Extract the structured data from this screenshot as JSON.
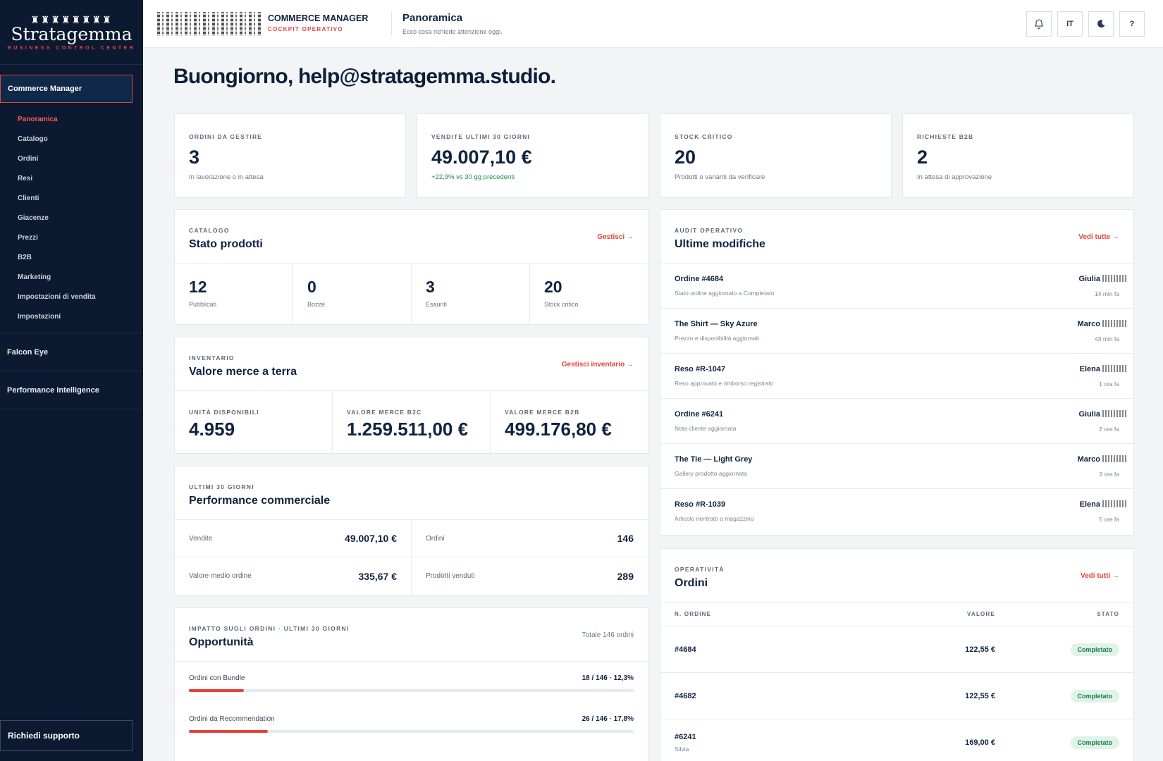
{
  "sidebar": {
    "logo_crown": "♜♜♜♜♜♜♜♜",
    "logo_brand": "Stratagemma",
    "logo_tag": "BUSINESS CONTROL CENTER",
    "section": "Commerce Manager",
    "items": [
      "Panoramica",
      "Catalogo",
      "Ordini",
      "Resi",
      "Clienti",
      "Giacenze",
      "Prezzi",
      "B2B",
      "Marketing",
      "Impostazioni di vendita",
      "Impostazioni"
    ],
    "groups": [
      "Falcon Eye",
      "Performance Intelligence"
    ],
    "support": "Richiedi supporto"
  },
  "topbar": {
    "app_title": "COMMERCE MANAGER",
    "app_sub": "COCKPIT OPERATIVO",
    "page_title": "Panoramica",
    "page_sub": "Ecco cosa richiede attenzione oggi.",
    "lang": "IT",
    "help": "?"
  },
  "greeting": "Buongiorno, help@stratagemma.studio.",
  "kpis": [
    {
      "label": "ORDINI DA GESTIRE",
      "value": "3",
      "note": "In lavorazione o in attesa"
    },
    {
      "label": "VENDITE ULTIMI 30 GIORNI",
      "value": "49.007,10 €",
      "note": "+22,9% vs 30 gg precedenti"
    },
    {
      "label": "STOCK CRITICO",
      "value": "20",
      "note": "Prodotti o varianti da verificare"
    },
    {
      "label": "RICHIESTE B2B",
      "value": "2",
      "note": "In attesa di approvazione"
    }
  ],
  "catalog": {
    "eyebrow": "CATALOGO",
    "title": "Stato prodotti",
    "link": "Gestisci →",
    "stats": [
      {
        "value": "12",
        "label": "Pubblicati"
      },
      {
        "value": "0",
        "label": "Bozze"
      },
      {
        "value": "3",
        "label": "Esauriti"
      },
      {
        "value": "20",
        "label": "Stock critico"
      }
    ]
  },
  "inventory": {
    "eyebrow": "INVENTARIO",
    "title": "Valore merce a terra",
    "link": "Gestisci inventario →",
    "stats": [
      {
        "label": "UNITÀ DISPONIBILI",
        "value": "4.959"
      },
      {
        "label": "VALORE MERCE B2C",
        "value": "1.259.511,00 €"
      },
      {
        "label": "VALORE MERCE B2B",
        "value": "499.176,80 €"
      }
    ]
  },
  "performance": {
    "eyebrow": "ULTIMI 30 GIORNI",
    "title": "Performance commerciale",
    "cells": [
      {
        "k": "Vendite",
        "v": "49.007,10 €"
      },
      {
        "k": "Ordini",
        "v": "146"
      },
      {
        "k": "Valore medio ordine",
        "v": "335,67 €"
      },
      {
        "k": "Prodotti venduti",
        "v": "289"
      }
    ]
  },
  "opportunities": {
    "eyebrow": "IMPATTO SUGLI ORDINI · ULTIMI 30 GIORNI",
    "title": "Opportunità",
    "total": "Totale 146 ordini",
    "rows": [
      {
        "k": "Ordini con Bundle",
        "v": "18 / 146 · 12,3%",
        "pct": 12.3
      },
      {
        "k": "Ordini da Recommendation",
        "v": "26 / 146 · 17,8%",
        "pct": 17.8
      }
    ]
  },
  "audit": {
    "eyebrow": "AUDIT OPERATIVO",
    "title": "Ultime modifiche",
    "link": "Vedi tutte →",
    "rows": [
      {
        "t": "Ordine #4684",
        "d": "Stato ordine aggiornato a Completato",
        "u": "Giulia",
        "w": "14 min fa"
      },
      {
        "t": "The Shirt — Sky Azure",
        "d": "Prezzo e disponibilità aggiornati",
        "u": "Marco",
        "w": "43 min fa"
      },
      {
        "t": "Reso #R-1047",
        "d": "Reso approvato e rimborso registrato",
        "u": "Elena",
        "w": "1 ora fa"
      },
      {
        "t": "Ordine #6241",
        "d": "Nota cliente aggiornata",
        "u": "Giulia",
        "w": "2 ore fa"
      },
      {
        "t": "The Tie — Light Grey",
        "d": "Gallery prodotto aggiornata",
        "u": "Marco",
        "w": "3 ore fa"
      },
      {
        "t": "Reso #R-1039",
        "d": "Articolo rientrato a magazzino",
        "u": "Elena",
        "w": "5 ore fa"
      }
    ]
  },
  "orders": {
    "eyebrow": "OPERATIVITÀ",
    "title": "Ordini",
    "link": "Vedi tutti →",
    "headers": [
      "N. ORDINE",
      "VALORE",
      "STATO"
    ],
    "rows": [
      {
        "id": "#4684",
        "cust": "",
        "amt": "122,55 €",
        "st": "Completato"
      },
      {
        "id": "#4682",
        "cust": "",
        "amt": "122,55 €",
        "st": "Completato"
      },
      {
        "id": "#6241",
        "cust": "Silvia",
        "amt": "169,00 €",
        "st": "Completato"
      }
    ]
  }
}
